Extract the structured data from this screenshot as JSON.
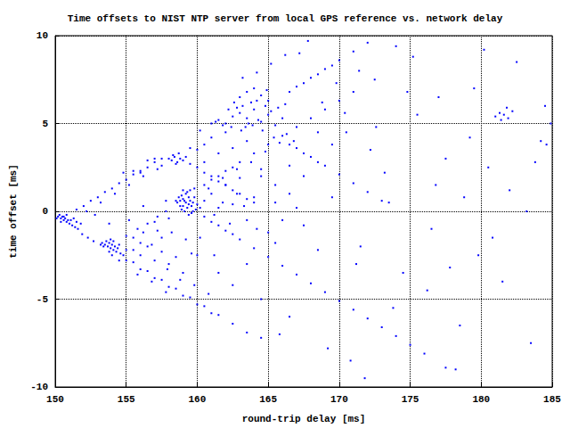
{
  "chart_data": {
    "type": "scatter",
    "title": "Time offsets to NIST NTP server from local GPS reference vs. network delay",
    "x_label": "round-trip delay [ms]",
    "y_label": "time offset [ms]",
    "color": "#0000ff",
    "marker": "square",
    "grid": true,
    "xlim": [
      150,
      185
    ],
    "xticks": [
      150,
      155,
      160,
      165,
      170,
      175,
      180,
      185
    ],
    "ylim": [
      -10,
      10
    ],
    "yticks": [
      -10,
      -5,
      0,
      5,
      10
    ],
    "x": [
      150.2,
      150.4,
      150.6,
      150.8,
      151.0,
      150.3,
      150.5,
      150.7,
      150.9,
      151.2,
      150.1,
      150.4,
      150.6,
      151.1,
      151.4,
      151.6,
      150.8,
      151.3,
      151.5,
      151.8,
      151.5,
      152.0,
      152.5,
      153.0,
      153.5,
      154.0,
      154.5,
      155.0,
      155.5,
      156.0,
      156.5,
      157.0,
      157.5,
      152.2,
      153.2,
      154.2,
      155.2,
      156.2,
      157.2,
      154.8,
      151.9,
      152.3,
      152.7,
      155.0,
      156.0,
      157.0,
      158.0,
      159.0,
      160.0,
      161.0,
      153.3,
      153.5,
      153.7,
      153.9,
      154.1,
      154.3,
      153.6,
      153.8,
      154.0,
      154.2,
      153.4,
      153.8,
      154.4,
      154.6,
      153.9,
      154.1,
      154.5,
      153.2,
      154.8,
      155.0,
      155.5,
      156.5,
      157.5,
      158.5,
      159.5,
      160.5,
      161.5,
      162.5,
      163.5,
      164.5,
      155.0,
      155.8,
      156.5,
      157.2,
      157.8,
      155.5,
      156.2,
      157.0,
      158.0,
      156.8,
      155.5,
      156.0,
      156.5,
      157.0,
      157.5,
      158.0,
      158.5,
      159.0,
      156.0,
      157.5,
      158.6,
      158.8,
      159.0,
      159.2,
      159.4,
      159.6,
      158.7,
      158.9,
      159.1,
      159.3,
      159.5,
      159.7,
      159.9,
      158.5,
      159.0,
      159.2,
      159.4,
      159.8,
      160.0,
      158.8,
      159.1,
      159.3,
      159.5,
      159.7,
      159.0,
      159.6,
      160.2,
      158.9,
      159.4,
      159.8,
      160.5,
      161.0,
      161.5,
      162.0,
      162.5,
      163.0,
      164.0,
      165.0,
      166.0,
      167.0,
      168.0,
      169.0,
      170.0,
      171.0,
      160.8,
      161.8,
      162.8,
      163.8,
      164.8,
      165.8,
      160.5,
      161.0,
      161.5,
      162.0,
      162.5,
      163.0,
      164.0,
      165.0,
      166.0,
      167.0,
      168.0,
      169.0,
      170.0,
      171.0,
      172.0,
      173.0,
      174.0,
      175.0,
      176.0,
      177.5,
      160.5,
      161.0,
      161.5,
      162.0,
      162.5,
      163.0,
      163.5,
      164.0,
      164.5,
      165.0,
      161.2,
      161.8,
      162.3,
      162.8,
      163.3,
      164.2,
      165.5,
      166.0,
      166.5,
      167.0,
      158.0,
      158.2,
      158.4,
      158.6,
      158.8,
      159.0,
      158.3,
      158.7,
      158.5,
      159.2,
      159.5,
      160.0,
      160.5,
      161.0,
      161.5,
      162.0,
      162.5,
      163.0,
      163.5,
      164.0,
      161.5,
      162.0,
      162.5,
      163.0,
      163.5,
      164.0,
      164.5,
      165.0,
      165.5,
      166.0,
      162.2,
      162.8,
      163.2,
      163.8,
      164.2,
      164.8,
      165.2,
      163.4,
      163.6,
      164.6,
      161.0,
      161.3,
      161.8,
      162.4,
      163.1,
      163.9,
      164.3,
      165.7,
      166.3,
      166.8,
      163.0,
      163.5,
      164.0,
      164.5,
      165.0,
      162.6,
      164.9,
      165.4,
      166.2,
      162.0,
      166.5,
      167.0,
      167.5,
      168.0,
      168.5,
      169.0,
      169.5,
      170.0,
      171.0,
      172.0,
      166.5,
      167.0,
      167.5,
      168.0,
      168.5,
      169.0,
      170.0,
      171.0,
      172.0,
      173.0,
      155.5,
      156.0,
      157.0,
      157.5,
      160.0,
      160.5,
      161.0,
      156.5,
      159.5,
      160.2,
      160.0,
      161.5,
      162.5,
      163.5,
      164.5,
      165.5,
      166.5,
      167.5,
      168.5,
      169.5,
      160.5,
      161.5,
      162.5,
      163.5,
      164.5,
      165.5,
      166.5,
      167.5,
      168.5,
      169.5,
      170.5,
      171.5,
      172.5,
      173.5,
      174.5,
      175.5,
      176.5,
      177.5,
      178.5,
      179.5,
      180.5,
      181.5,
      182.5,
      183.5,
      184.5,
      170.8,
      172.2,
      173.8,
      175.2,
      176.8,
      181.0,
      181.3,
      181.6,
      181.9,
      182.2,
      181.4,
      181.8,
      184.2,
      184.6,
      184.9,
      178.2,
      179.8,
      183.2,
      177.0,
      174.0,
      171.8,
      169.2,
      167.2,
      165.8,
      180.2,
      152.8,
      153.8,
      155.2,
      156.2,
      157.2,
      158.2,
      159.2,
      160.2,
      161.2,
      157.8,
      155.8,
      156.8,
      157.8,
      158.8,
      159.8,
      160.8,
      154.5,
      154.0,
      157.9,
      159.6,
      163.2,
      164.2,
      165.2,
      166.2,
      167.8,
      168.8,
      169.8,
      170.4,
      171.4,
      172.6,
      173.2,
      174.8,
      176.2,
      177.8,
      179.2,
      180.8,
      182.0,
      183.8,
      171.2,
      178.8
    ],
    "values": [
      -0.3,
      -0.4,
      -0.5,
      -0.6,
      -0.7,
      -0.2,
      -0.3,
      -0.4,
      -0.5,
      -0.8,
      -0.4,
      -0.6,
      -0.3,
      -0.5,
      -0.9,
      -1.0,
      -0.2,
      -0.4,
      -0.6,
      -0.7,
      0.1,
      0.3,
      0.6,
      0.8,
      1.1,
      1.3,
      1.6,
      1.8,
      2.1,
      2.3,
      2.5,
      2.8,
      3.0,
      0.0,
      0.5,
      1.0,
      1.5,
      2.0,
      2.4,
      2.2,
      -1.3,
      -1.5,
      -1.7,
      -2.8,
      -3.3,
      -3.8,
      -4.3,
      -4.8,
      -5.3,
      -5.8,
      -1.8,
      -1.9,
      -2.0,
      -2.1,
      -2.2,
      -2.3,
      -1.7,
      -1.8,
      -1.9,
      -2.0,
      -2.0,
      -2.3,
      -2.1,
      -2.4,
      -1.6,
      -1.7,
      -1.9,
      -1.9,
      -2.5,
      -2.2,
      -2.9,
      -3.4,
      -3.9,
      -4.4,
      -4.9,
      -5.4,
      -5.9,
      -6.4,
      -6.9,
      -7.2,
      -1.4,
      -1.0,
      -0.7,
      -0.3,
      0.0,
      -1.5,
      -1.2,
      -0.6,
      -0.4,
      -1.9,
      -2.2,
      -2.5,
      -2.0,
      -2.8,
      -2.3,
      -3.0,
      -2.6,
      -3.5,
      -1.8,
      -1.5,
      0.5,
      0.6,
      0.7,
      0.5,
      0.4,
      0.3,
      0.8,
      0.9,
      0.6,
      0.2,
      0.6,
      0.5,
      0.1,
      0.6,
      0.3,
      1.0,
      0.8,
      0.8,
      0.4,
      0.3,
      0.0,
      1.1,
      1.2,
      0.0,
      1.2,
      -0.1,
      0.2,
      0.1,
      -0.2,
      1.3,
      1.5,
      1.8,
      2.0,
      2.3,
      2.5,
      2.8,
      3.3,
      3.8,
      4.3,
      4.8,
      5.3,
      5.8,
      6.3,
      6.8,
      1.3,
      1.9,
      2.4,
      2.8,
      3.4,
      3.9,
      -0.3,
      -0.6,
      -0.8,
      -1.1,
      -1.3,
      -1.6,
      -2.1,
      -2.6,
      -3.1,
      -3.6,
      -4.1,
      -4.6,
      -5.1,
      -5.6,
      -6.1,
      -6.6,
      -7.1,
      -7.6,
      -8.1,
      -8.9,
      0.6,
      1.0,
      0.2,
      1.5,
      0.4,
      1.9,
      -0.5,
      0.8,
      2.4,
      -1.2,
      -0.2,
      0.5,
      -0.7,
      1.0,
      0.3,
      -1.0,
      1.5,
      -0.5,
      2.6,
      0.2,
      3.0,
      2.9,
      3.1,
      2.8,
      3.0,
      2.9,
      3.2,
      3.3,
      2.7,
      3.1,
      2.7,
      2.5,
      2.2,
      2.0,
      1.7,
      1.5,
      1.2,
      1.0,
      0.7,
      0.5,
      5.2,
      5.0,
      5.4,
      5.6,
      5.3,
      5.8,
      5.1,
      5.5,
      4.9,
      5.3,
      5.8,
      5.9,
      6.0,
      6.2,
      6.3,
      6.0,
      5.7,
      4.8,
      5.0,
      4.6,
      5.0,
      5.1,
      4.9,
      4.8,
      4.6,
      4.9,
      5.2,
      5.9,
      4.4,
      4.0,
      6.5,
      6.8,
      7.0,
      6.6,
      6.3,
      6.2,
      6.9,
      4.2,
      6.1,
      4.5,
      6.8,
      7.1,
      7.3,
      7.6,
      7.8,
      8.1,
      8.3,
      8.6,
      9.1,
      9.6,
      3.8,
      3.6,
      3.3,
      3.1,
      2.8,
      2.6,
      2.1,
      1.6,
      1.1,
      0.6,
      2.3,
      2.2,
      3.0,
      2.6,
      3.5,
      3.8,
      4.2,
      2.9,
      3.6,
      4.6,
      -2.5,
      -3.5,
      -4.2,
      -3.0,
      -5.0,
      -1.8,
      -6.0,
      -0.8,
      -2.2,
      0.8,
      2.8,
      3.3,
      3.6,
      4.0,
      2.0,
      0.5,
      1.0,
      2.0,
      4.5,
      3.8,
      4.5,
      -2.0,
      7.5,
      0.5,
      -3.5,
      5.5,
      -1.0,
      3.0,
      -6.5,
      7.0,
      2.5,
      -4.0,
      8.5,
      -7.5,
      6.0,
      -8.5,
      3.5,
      -5.5,
      8.8,
      1.5,
      5.4,
      5.6,
      5.5,
      5.3,
      5.7,
      5.2,
      5.9,
      4.0,
      3.8,
      5.0,
      -9.0,
      -2.5,
      0.0,
      6.5,
      9.4,
      -9.5,
      -7.8,
      9.0,
      -7.0,
      9.2,
      -0.2,
      -0.7,
      -0.5,
      0.3,
      -1.1,
      -1.2,
      -1.6,
      -1.5,
      -2.5,
      0.6,
      -3.6,
      -4.0,
      -4.6,
      -3.9,
      -4.2,
      -4.7,
      -2.8,
      -2.5,
      -3.3,
      -2.4,
      7.6,
      7.9,
      8.4,
      8.9,
      9.7,
      6.2,
      7.3,
      5.6,
      8.0,
      4.8,
      2.2,
      6.8,
      -4.5,
      -3.2,
      4.2,
      -1.5,
      1.2,
      2.8,
      -3.0,
      0.8
    ]
  }
}
